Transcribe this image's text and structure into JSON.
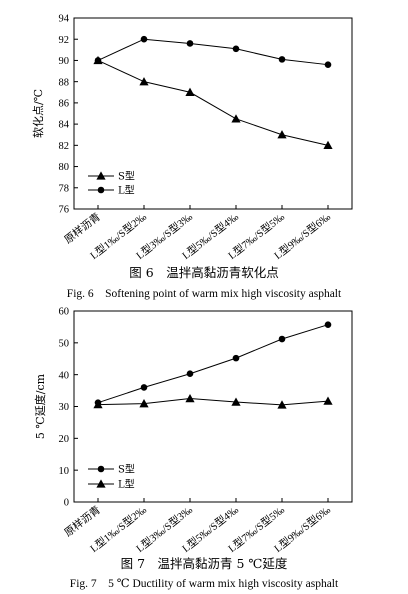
{
  "chart_data": [
    {
      "type": "line",
      "categories": [
        "原样沥青",
        "L型1‰/S型2‰",
        "L型3‰/S型3‰",
        "L型5‰/S型4‰",
        "L型7‰/S型5‰",
        "L型9‰/S型6‰"
      ],
      "series": [
        {
          "name": "S型",
          "marker": "triangle",
          "values": [
            90.0,
            88.0,
            87.0,
            84.5,
            83.0,
            82.0
          ]
        },
        {
          "name": "L型",
          "marker": "circle",
          "values": [
            90.0,
            92.0,
            91.6,
            91.1,
            90.1,
            89.6
          ]
        }
      ],
      "ylabel": "软化点/℃",
      "ylim": [
        76,
        94
      ],
      "yticks": [
        76,
        78,
        80,
        82,
        84,
        86,
        88,
        90,
        92,
        94
      ],
      "legend_placement": "bottom-left",
      "grid": false,
      "caption_cn": "图 6　温拌高黏沥青软化点",
      "caption_en": "Fig. 6　Softening point of warm mix high viscosity asphalt"
    },
    {
      "type": "line",
      "categories": [
        "原样沥青",
        "L型1‰/S型2‰",
        "L型3‰/S型3‰",
        "L型5‰/S型4‰",
        "L型7‰/S型5‰",
        "L型9‰/S型6‰"
      ],
      "series": [
        {
          "name": "S型",
          "marker": "circle",
          "values": [
            31.2,
            36.0,
            40.3,
            45.2,
            51.2,
            55.7
          ]
        },
        {
          "name": "L型",
          "marker": "triangle",
          "values": [
            30.6,
            30.9,
            32.5,
            31.4,
            30.5,
            31.7
          ]
        }
      ],
      "ylabel": "5 ℃延度/cm",
      "ylim": [
        0,
        60
      ],
      "yticks": [
        0,
        10,
        20,
        30,
        40,
        50,
        60
      ],
      "legend_placement": "bottom-left",
      "grid": false,
      "caption_cn": "图 7　温拌高黏沥青 5 ℃延度",
      "caption_en": "Fig. 7　5 ℃ Ductility of warm mix high viscosity asphalt"
    }
  ]
}
